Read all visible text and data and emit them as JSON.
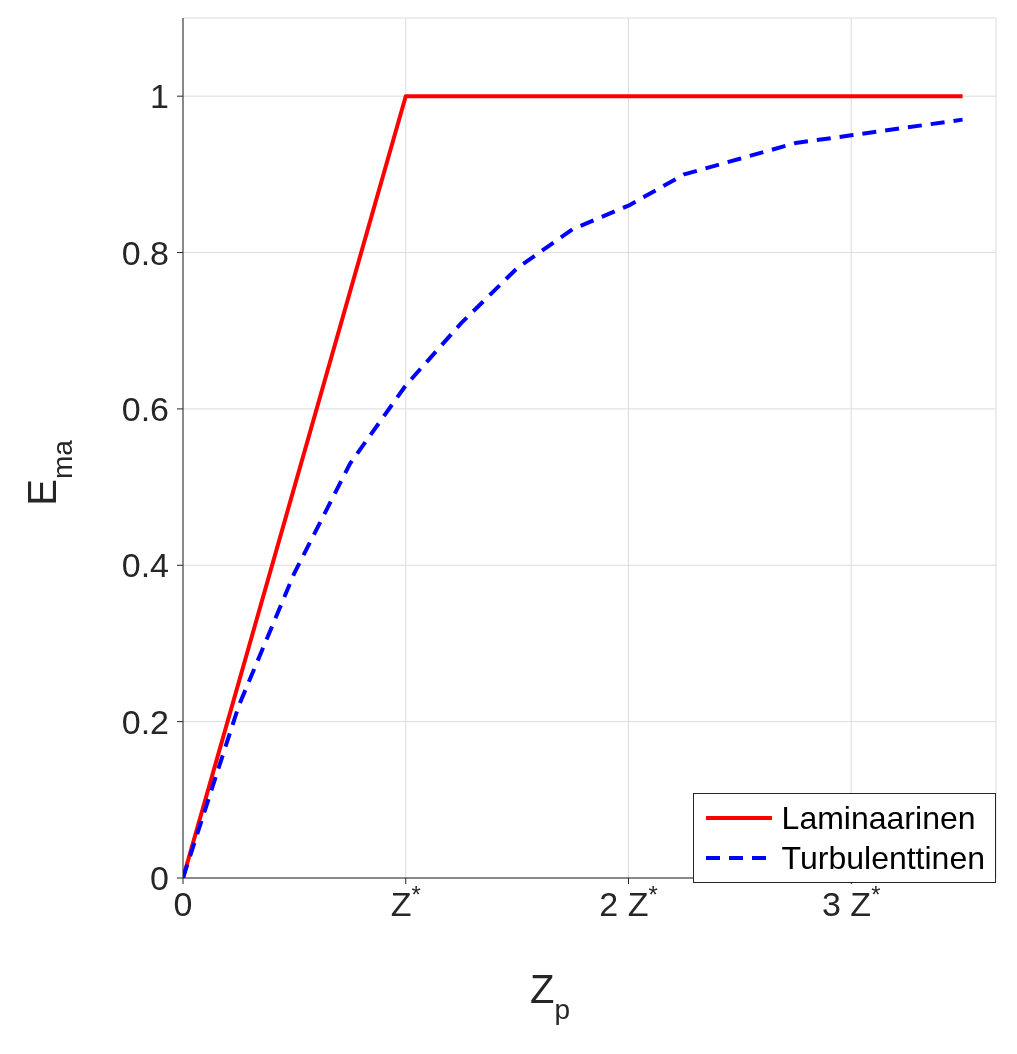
{
  "chart_data": {
    "type": "line",
    "xlabel": "Z$_{p}$",
    "ylabel": "E$_{ma}$",
    "xlim": [
      0,
      3.65
    ],
    "ylim": [
      0,
      1.1
    ],
    "xticks": [
      {
        "value": 0,
        "label": "0"
      },
      {
        "value": 1,
        "label": "Z$^{*}$"
      },
      {
        "value": 2,
        "label": "2 Z$^{*}$"
      },
      {
        "value": 3,
        "label": "3 Z$^{*}$"
      }
    ],
    "yticks": [
      0,
      0.2,
      0.4,
      0.6,
      0.8,
      1
    ],
    "grid": true,
    "legend": "bottom right",
    "series": [
      {
        "name": "Laminaarinen",
        "color": "#ff0000",
        "line_style": "solid",
        "x": [
          0,
          1,
          3.5
        ],
        "values": [
          0,
          1,
          1
        ]
      },
      {
        "name": "Turbulenttinen",
        "color": "#0000ff",
        "line_style": "dashed",
        "x": [
          0,
          0.25,
          0.5,
          0.75,
          1,
          1.25,
          1.5,
          1.75,
          2,
          2.25,
          2.5,
          2.75,
          3,
          3.25,
          3.5
        ],
        "values": [
          0,
          0.22,
          0.39,
          0.53,
          0.63,
          0.71,
          0.78,
          0.83,
          0.86,
          0.9,
          0.92,
          0.94,
          0.95,
          0.96,
          0.97
        ]
      }
    ]
  }
}
